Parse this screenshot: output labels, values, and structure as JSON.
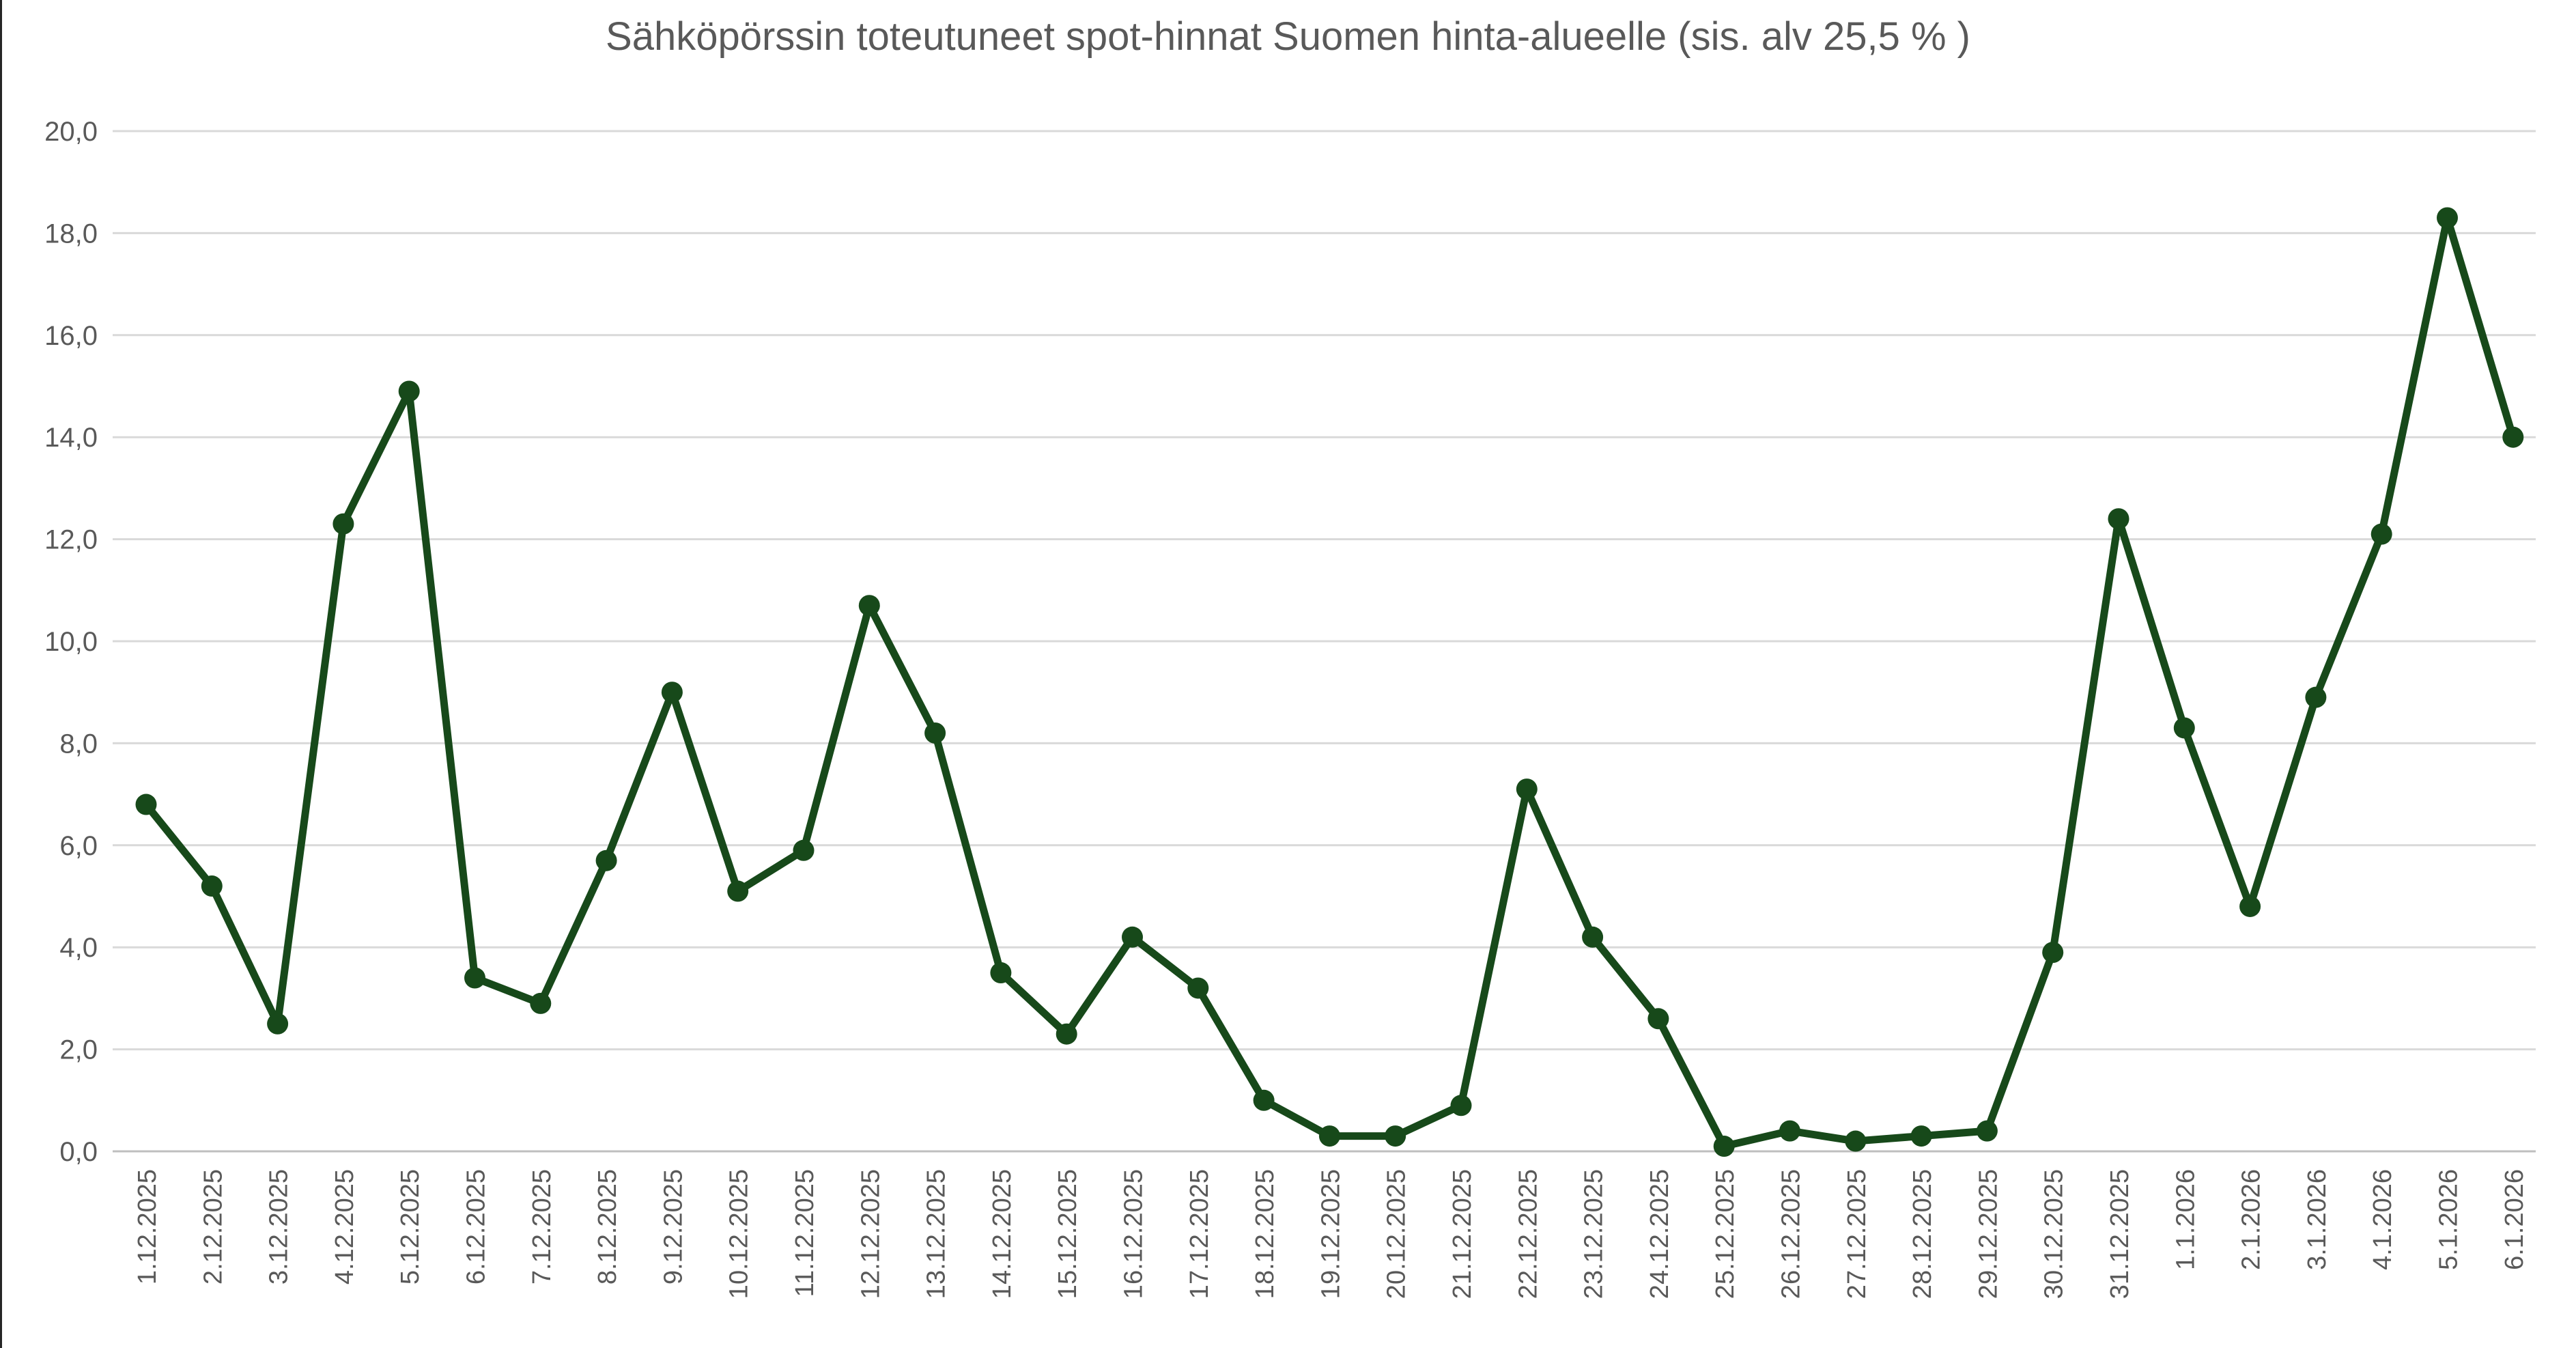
{
  "window": {
    "border_color": "#262626"
  },
  "chart_data": {
    "type": "line",
    "title": "Sähköpörssin toteutuneet spot-hinnat Suomen hinta-alueelle (sis. alv 25,5 % )",
    "xlabel": "",
    "ylabel": "",
    "categories": [
      "1.12.2025",
      "2.12.2025",
      "3.12.2025",
      "4.12.2025",
      "5.12.2025",
      "6.12.2025",
      "7.12.2025",
      "8.12.2025",
      "9.12.2025",
      "10.12.2025",
      "11.12.2025",
      "12.12.2025",
      "13.12.2025",
      "14.12.2025",
      "15.12.2025",
      "16.12.2025",
      "17.12.2025",
      "18.12.2025",
      "19.12.2025",
      "20.12.2025",
      "21.12.2025",
      "22.12.2025",
      "23.12.2025",
      "24.12.2025",
      "25.12.2025",
      "26.12.2025",
      "27.12.2025",
      "28.12.2025",
      "29.12.2025",
      "30.12.2025",
      "31.12.2025",
      "1.1.2026",
      "2.1.2026",
      "3.1.2026",
      "4.1.2026",
      "5.1.2026",
      "6.1.2026"
    ],
    "series": [
      {
        "name": "spot-hinta",
        "values": [
          6.8,
          5.2,
          2.5,
          12.3,
          14.9,
          3.4,
          2.9,
          5.7,
          9.0,
          5.1,
          5.9,
          10.7,
          8.2,
          3.5,
          2.3,
          4.2,
          3.2,
          1.0,
          0.3,
          0.3,
          0.9,
          7.1,
          4.2,
          2.6,
          0.1,
          0.4,
          0.2,
          0.3,
          0.4,
          3.9,
          12.4,
          8.3,
          4.8,
          8.9,
          12.1,
          18.3,
          14.0
        ]
      }
    ],
    "ylim": [
      0,
      20
    ],
    "ytick_step": 2,
    "ytick_labels": [
      "0,0",
      "2,0",
      "4,0",
      "6,0",
      "8,0",
      "10,0",
      "12,0",
      "14,0",
      "16,0",
      "18,0",
      "20,0"
    ],
    "grid": true,
    "legend_position": "none",
    "marker": "circle",
    "style": {
      "line_color": "#17491a",
      "marker_color": "#17491a",
      "gridline_color": "#d9d9d9",
      "axis_line_color": "#bfbfbf",
      "label_color": "#595959",
      "title_color": "#595959"
    }
  }
}
